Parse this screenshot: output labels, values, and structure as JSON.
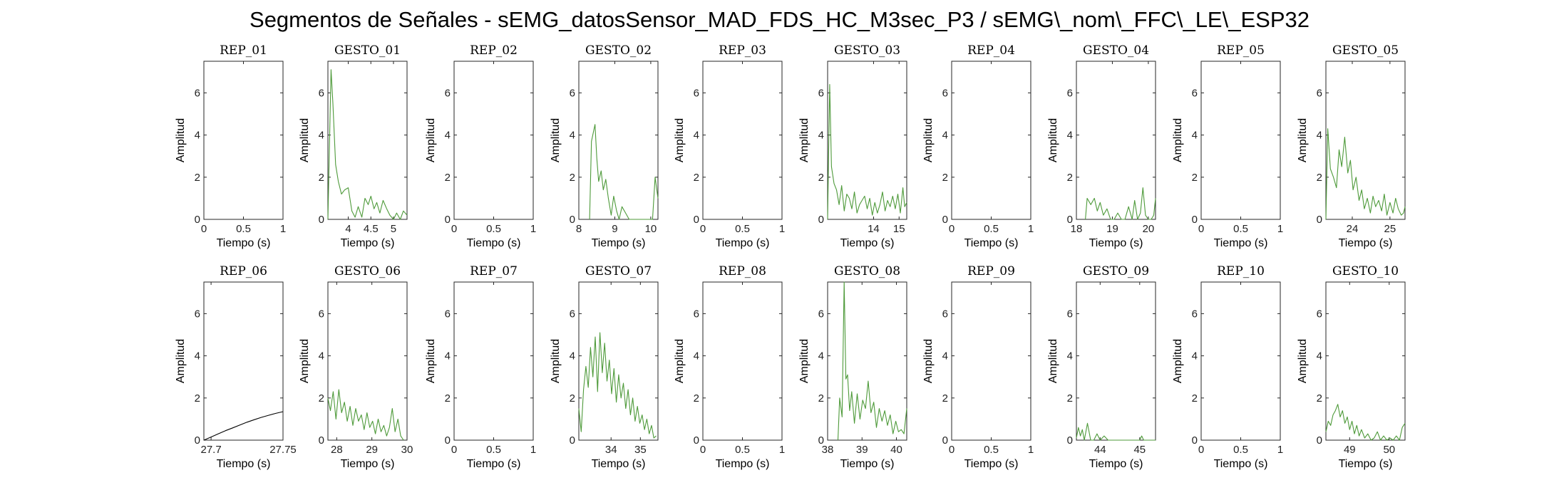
{
  "title": "Segmentos de Señales - sEMG_datosSensor_MAD_FDS_HC_M3sec_P3 / sEMG\\_nom\\_FFC\\_LE\\_ESP32",
  "colors": {
    "gesture": "#4e9a3a",
    "rest": "#000000",
    "axis": "#262626"
  },
  "chart_data": [
    {
      "type": "line",
      "title": "REP_01",
      "xlabel": "Tiempo (s)",
      "ylabel": "Amplitud",
      "xlim": [
        0,
        1
      ],
      "ylim": [
        0,
        7.5
      ],
      "xticks": [
        0,
        0.5,
        1
      ],
      "xtick_labels": [
        "0",
        "0.5",
        "1"
      ],
      "yticks": [
        0,
        2,
        4,
        6
      ],
      "ytick_labels": [
        "0",
        "2",
        "4",
        "6"
      ],
      "color": "#000000",
      "x": [],
      "y": []
    },
    {
      "type": "line",
      "title": "GESTO_01",
      "xlabel": "Tiempo (s)",
      "ylabel": "Amplitud",
      "xlim": [
        3.55,
        5.3
      ],
      "ylim": [
        0,
        7.5
      ],
      "xticks": [
        4,
        4.5,
        5
      ],
      "xtick_labels": [
        "4",
        "4.5",
        "5"
      ],
      "yticks": [
        0,
        2,
        4,
        6
      ],
      "ytick_labels": [
        "0",
        "2",
        "4",
        "6"
      ],
      "color": "#4e9a3a",
      "x": [
        3.55,
        3.62,
        3.66,
        3.72,
        3.78,
        3.85,
        3.92,
        4.0,
        4.08,
        4.15,
        4.22,
        4.3,
        4.37,
        4.44,
        4.5,
        4.57,
        4.63,
        4.7,
        4.77,
        4.85,
        4.92,
        5.0,
        5.07,
        5.15,
        5.22,
        5.3
      ],
      "y": [
        0,
        7.1,
        5.5,
        2.6,
        1.8,
        1.2,
        1.4,
        1.5,
        0.4,
        0.1,
        0.6,
        0.1,
        1.0,
        0.7,
        1.1,
        0.5,
        0.8,
        0.3,
        0.9,
        0.5,
        0.2,
        0.0,
        0.3,
        0.0,
        0.4,
        0.2
      ]
    },
    {
      "type": "line",
      "title": "REP_02",
      "xlabel": "Tiempo (s)",
      "ylabel": "Amplitud",
      "xlim": [
        0,
        1
      ],
      "ylim": [
        0,
        7.5
      ],
      "xticks": [
        0,
        0.5,
        1
      ],
      "xtick_labels": [
        "0",
        "0.5",
        "1"
      ],
      "yticks": [
        0,
        2,
        4,
        6
      ],
      "ytick_labels": [
        "0",
        "2",
        "4",
        "6"
      ],
      "color": "#000000",
      "x": [],
      "y": []
    },
    {
      "type": "line",
      "title": "GESTO_02",
      "xlabel": "Tiempo (s)",
      "ylabel": "Amplitud",
      "xlim": [
        8,
        10.2
      ],
      "ylim": [
        0,
        7.5
      ],
      "xticks": [
        8,
        9,
        10
      ],
      "xtick_labels": [
        "8",
        "9",
        "10"
      ],
      "yticks": [
        0,
        2,
        4,
        6
      ],
      "ytick_labels": [
        "0",
        "2",
        "4",
        "6"
      ],
      "color": "#4e9a3a",
      "x": [
        8.3,
        8.35,
        8.45,
        8.5,
        8.55,
        8.62,
        8.68,
        8.75,
        8.82,
        8.9,
        8.97,
        9.05,
        9.12,
        9.2,
        9.3,
        9.4,
        9.5,
        9.7,
        9.9,
        10.05,
        10.12,
        10.2
      ],
      "y": [
        0,
        3.7,
        4.5,
        2.9,
        1.8,
        2.3,
        1.4,
        1.9,
        1.0,
        0.2,
        1.1,
        0.4,
        0.0,
        0.6,
        0.3,
        0.0,
        0.0,
        0.0,
        0.0,
        0.0,
        2.0,
        1.0
      ]
    },
    {
      "type": "line",
      "title": "REP_03",
      "xlabel": "Tiempo (s)",
      "ylabel": "Amplitud",
      "xlim": [
        0,
        1
      ],
      "ylim": [
        0,
        7.5
      ],
      "xticks": [
        0,
        0.5,
        1
      ],
      "xtick_labels": [
        "0",
        "0.5",
        "1"
      ],
      "yticks": [
        0,
        2,
        4,
        6
      ],
      "ytick_labels": [
        "0",
        "2",
        "4",
        "6"
      ],
      "color": "#000000",
      "x": [],
      "y": []
    },
    {
      "type": "line",
      "title": "GESTO_03",
      "xlabel": "Tiempo (s)",
      "ylabel": "Amplitud",
      "xlim": [
        12.2,
        15.3
      ],
      "ylim": [
        0,
        7.5
      ],
      "xticks": [
        14,
        15
      ],
      "xtick_labels": [
        "14",
        "15"
      ],
      "yticks": [
        0,
        2,
        4,
        6
      ],
      "ytick_labels": [
        "0",
        "2",
        "4",
        "6"
      ],
      "color": "#4e9a3a",
      "x": [
        12.2,
        12.28,
        12.35,
        12.45,
        12.55,
        12.65,
        12.75,
        12.85,
        12.95,
        13.05,
        13.15,
        13.25,
        13.35,
        13.45,
        13.55,
        13.65,
        13.75,
        13.85,
        13.95,
        14.05,
        14.15,
        14.25,
        14.35,
        14.45,
        14.55,
        14.65,
        14.75,
        14.85,
        14.95,
        15.05,
        15.15,
        15.22,
        15.3
      ],
      "y": [
        0,
        6.4,
        2.5,
        1.7,
        1.4,
        0.7,
        1.6,
        0.4,
        1.2,
        1.0,
        0.5,
        1.3,
        0.3,
        0.7,
        0.9,
        1.1,
        0.5,
        1.0,
        0.2,
        0.8,
        0.3,
        0.7,
        1.3,
        0.4,
        0.9,
        0.6,
        1.1,
        0.5,
        1.2,
        0.3,
        1.5,
        0.6,
        0.8
      ]
    },
    {
      "type": "line",
      "title": "REP_04",
      "xlabel": "Tiempo (s)",
      "ylabel": "Amplitud",
      "xlim": [
        0,
        1
      ],
      "ylim": [
        0,
        7.5
      ],
      "xticks": [
        0,
        0.5,
        1
      ],
      "xtick_labels": [
        "0",
        "0.5",
        "1"
      ],
      "yticks": [
        0,
        2,
        4,
        6
      ],
      "ytick_labels": [
        "0",
        "2",
        "4",
        "6"
      ],
      "color": "#000000",
      "x": [],
      "y": []
    },
    {
      "type": "line",
      "title": "GESTO_04",
      "xlabel": "Tiempo (s)",
      "ylabel": "Amplitud",
      "xlim": [
        18,
        20.2
      ],
      "ylim": [
        0,
        7.5
      ],
      "xticks": [
        18,
        19,
        20
      ],
      "xtick_labels": [
        "18",
        "19",
        "20"
      ],
      "yticks": [
        0,
        2,
        4,
        6
      ],
      "ytick_labels": [
        "0",
        "2",
        "4",
        "6"
      ],
      "color": "#4e9a3a",
      "x": [
        18.25,
        18.3,
        18.4,
        18.5,
        18.58,
        18.66,
        18.75,
        18.85,
        18.95,
        19.05,
        19.15,
        19.25,
        19.35,
        19.45,
        19.55,
        19.62,
        19.7,
        19.78,
        19.85,
        19.92,
        20.0,
        20.08,
        20.15,
        20.2
      ],
      "y": [
        0,
        1.0,
        0.7,
        1.0,
        0.4,
        0.8,
        0.2,
        0.5,
        0.0,
        0.0,
        0.3,
        0.0,
        0.0,
        0.6,
        0.0,
        0.9,
        0.0,
        0.3,
        1.5,
        0.2,
        0.0,
        0.0,
        0.2,
        1.0
      ]
    },
    {
      "type": "line",
      "title": "REP_05",
      "xlabel": "Tiempo (s)",
      "ylabel": "Amplitud",
      "xlim": [
        0,
        1
      ],
      "ylim": [
        0,
        7.5
      ],
      "xticks": [
        0,
        0.5,
        1
      ],
      "xtick_labels": [
        "0",
        "0.5",
        "1"
      ],
      "yticks": [
        0,
        2,
        4,
        6
      ],
      "ytick_labels": [
        "0",
        "2",
        "4",
        "6"
      ],
      "color": "#000000",
      "x": [],
      "y": []
    },
    {
      "type": "line",
      "title": "GESTO_05",
      "xlabel": "Tiempo (s)",
      "ylabel": "Amplitud",
      "xlim": [
        23.3,
        25.4
      ],
      "ylim": [
        0,
        7.5
      ],
      "xticks": [
        24,
        25
      ],
      "xtick_labels": [
        "24",
        "25"
      ],
      "yticks": [
        0,
        2,
        4,
        6
      ],
      "ytick_labels": [
        "0",
        "2",
        "4",
        "6"
      ],
      "color": "#4e9a3a",
      "x": [
        23.3,
        23.35,
        23.42,
        23.5,
        23.58,
        23.65,
        23.72,
        23.8,
        23.88,
        23.95,
        24.02,
        24.1,
        24.18,
        24.25,
        24.32,
        24.4,
        24.48,
        24.55,
        24.62,
        24.7,
        24.78,
        24.85,
        24.92,
        25.0,
        25.08,
        25.15,
        25.22,
        25.3,
        25.36,
        25.4
      ],
      "y": [
        0,
        4.3,
        2.4,
        2.0,
        1.5,
        3.3,
        2.5,
        3.9,
        2.2,
        2.8,
        1.4,
        2.0,
        0.9,
        1.4,
        0.5,
        1.0,
        0.3,
        1.1,
        0.6,
        0.9,
        0.4,
        1.2,
        0.2,
        0.8,
        0.3,
        1.0,
        0.5,
        0.2,
        0.3,
        0.6
      ]
    },
    {
      "type": "line",
      "title": "REP_06",
      "xlabel": "Tiempo (s)",
      "ylabel": "Amplitud",
      "xlim": [
        27.695,
        27.75
      ],
      "ylim": [
        0,
        7.5
      ],
      "xticks": [
        27.7,
        27.75
      ],
      "xtick_labels": [
        "27.7",
        "27.75"
      ],
      "yticks": [
        0,
        2,
        4,
        6
      ],
      "ytick_labels": [
        "0",
        "2",
        "4",
        "6"
      ],
      "color": "#000000",
      "x": [
        27.695,
        27.7,
        27.705,
        27.71,
        27.715,
        27.72,
        27.725,
        27.73,
        27.735,
        27.74,
        27.745,
        27.75
      ],
      "y": [
        0,
        0.15,
        0.3,
        0.45,
        0.58,
        0.72,
        0.85,
        0.97,
        1.08,
        1.18,
        1.27,
        1.35
      ]
    },
    {
      "type": "line",
      "title": "GESTO_06",
      "xlabel": "Tiempo (s)",
      "ylabel": "Amplitud",
      "xlim": [
        27.75,
        30
      ],
      "ylim": [
        0,
        7.5
      ],
      "xticks": [
        28,
        29,
        30
      ],
      "xtick_labels": [
        "28",
        "29",
        "30"
      ],
      "yticks": [
        0,
        2,
        4,
        6
      ],
      "ytick_labels": [
        "0",
        "2",
        "4",
        "6"
      ],
      "color": "#4e9a3a",
      "x": [
        27.75,
        27.82,
        27.9,
        27.98,
        28.06,
        28.14,
        28.22,
        28.3,
        28.38,
        28.46,
        28.54,
        28.62,
        28.7,
        28.78,
        28.86,
        28.94,
        29.02,
        29.1,
        29.18,
        29.26,
        29.34,
        29.42,
        29.5,
        29.58,
        29.66,
        29.74,
        29.82,
        29.9
      ],
      "y": [
        2.0,
        1.4,
        2.3,
        1.0,
        2.4,
        1.3,
        1.8,
        0.9,
        1.6,
        0.7,
        1.5,
        0.9,
        1.2,
        0.5,
        1.3,
        0.6,
        0.9,
        0.3,
        1.0,
        0.4,
        0.7,
        0.2,
        0.6,
        1.5,
        0.4,
        1.0,
        0.2,
        0.0
      ]
    },
    {
      "type": "line",
      "title": "REP_07",
      "xlabel": "Tiempo (s)",
      "ylabel": "Amplitud",
      "xlim": [
        0,
        1
      ],
      "ylim": [
        0,
        7.5
      ],
      "xticks": [
        0,
        0.5,
        1
      ],
      "xtick_labels": [
        "0",
        "0.5",
        "1"
      ],
      "yticks": [
        0,
        2,
        4,
        6
      ],
      "ytick_labels": [
        "0",
        "2",
        "4",
        "6"
      ],
      "color": "#000000",
      "x": [],
      "y": []
    },
    {
      "type": "line",
      "title": "GESTO_07",
      "xlabel": "Tiempo (s)",
      "ylabel": "Amplitud",
      "xlim": [
        32.9,
        35.6
      ],
      "ylim": [
        0,
        7.5
      ],
      "xticks": [
        34,
        35
      ],
      "xtick_labels": [
        "34",
        "35"
      ],
      "yticks": [
        0,
        2,
        4,
        6
      ],
      "ytick_labels": [
        "0",
        "2",
        "4",
        "6"
      ],
      "color": "#4e9a3a",
      "x": [
        32.9,
        32.98,
        33.06,
        33.14,
        33.22,
        33.3,
        33.38,
        33.46,
        33.54,
        33.62,
        33.7,
        33.78,
        33.86,
        33.94,
        34.02,
        34.1,
        34.18,
        34.26,
        34.34,
        34.42,
        34.5,
        34.58,
        34.66,
        34.74,
        34.82,
        34.9,
        34.98,
        35.06,
        35.14,
        35.22,
        35.3,
        35.38,
        35.46,
        35.54
      ],
      "y": [
        1.5,
        0.4,
        2.4,
        3.5,
        2.5,
        4.4,
        3.0,
        4.9,
        2.3,
        5.1,
        3.2,
        4.6,
        2.8,
        3.8,
        2.2,
        3.4,
        1.8,
        3.1,
        2.0,
        2.7,
        1.5,
        2.4,
        1.2,
        2.0,
        0.9,
        1.6,
        0.8,
        1.2,
        0.5,
        1.0,
        0.3,
        0.7,
        0.1,
        0.2
      ]
    },
    {
      "type": "line",
      "title": "REP_08",
      "xlabel": "Tiempo (s)",
      "ylabel": "Amplitud",
      "xlim": [
        0,
        1
      ],
      "ylim": [
        0,
        7.5
      ],
      "xticks": [
        0,
        0.5,
        1
      ],
      "xtick_labels": [
        "0",
        "0.5",
        "1"
      ],
      "yticks": [
        0,
        2,
        4,
        6
      ],
      "ytick_labels": [
        "0",
        "2",
        "4",
        "6"
      ],
      "color": "#000000",
      "x": [],
      "y": []
    },
    {
      "type": "line",
      "title": "GESTO_08",
      "xlabel": "Tiempo (s)",
      "ylabel": "Amplitud",
      "xlim": [
        38,
        40.3
      ],
      "ylim": [
        0,
        7.5
      ],
      "xticks": [
        38,
        39,
        40
      ],
      "xtick_labels": [
        "38",
        "39",
        "40"
      ],
      "yticks": [
        0,
        2,
        4,
        6
      ],
      "ytick_labels": [
        "0",
        "2",
        "4",
        "6"
      ],
      "color": "#4e9a3a",
      "x": [
        38.3,
        38.35,
        38.42,
        38.48,
        38.53,
        38.58,
        38.64,
        38.7,
        38.78,
        38.86,
        38.94,
        39.02,
        39.1,
        39.18,
        39.26,
        39.34,
        39.42,
        39.5,
        39.58,
        39.66,
        39.74,
        39.82,
        39.9,
        39.98,
        40.06,
        40.14,
        40.22,
        40.3
      ],
      "y": [
        0,
        2.0,
        1.1,
        7.5,
        2.9,
        3.1,
        1.4,
        2.3,
        0.8,
        2.2,
        1.0,
        1.9,
        1.5,
        2.8,
        1.3,
        1.8,
        0.6,
        1.5,
        0.9,
        1.4,
        0.7,
        1.2,
        0.3,
        0.9,
        0.4,
        0.5,
        0.3,
        1.5
      ]
    },
    {
      "type": "line",
      "title": "REP_09",
      "xlabel": "Tiempo (s)",
      "ylabel": "Amplitud",
      "xlim": [
        0,
        1
      ],
      "ylim": [
        0,
        7.5
      ],
      "xticks": [
        0,
        0.5,
        1
      ],
      "xtick_labels": [
        "0",
        "0.5",
        "1"
      ],
      "yticks": [
        0,
        2,
        4,
        6
      ],
      "ytick_labels": [
        "0",
        "2",
        "4",
        "6"
      ],
      "color": "#000000",
      "x": [],
      "y": []
    },
    {
      "type": "line",
      "title": "GESTO_09",
      "xlabel": "Tiempo (s)",
      "ylabel": "Amplitud",
      "xlim": [
        43.4,
        45.4
      ],
      "ylim": [
        0,
        7.5
      ],
      "xticks": [
        44,
        45
      ],
      "xtick_labels": [
        "44",
        "45"
      ],
      "yticks": [
        0,
        2,
        4,
        6
      ],
      "ytick_labels": [
        "0",
        "2",
        "4",
        "6"
      ],
      "color": "#4e9a3a",
      "x": [
        43.4,
        43.45,
        43.5,
        43.55,
        43.6,
        43.68,
        43.76,
        43.84,
        43.92,
        44.0,
        44.1,
        44.2,
        44.3,
        44.45,
        44.6,
        44.75,
        44.9,
        45.0,
        45.05,
        45.1,
        45.2,
        45.3,
        45.4
      ],
      "y": [
        0.1,
        0.6,
        0.2,
        0.5,
        0.0,
        0.8,
        0.0,
        0.0,
        0.3,
        0.0,
        0.2,
        0.0,
        0.0,
        0.0,
        0.0,
        0.0,
        0.0,
        0.0,
        0.2,
        0.0,
        0.0,
        0.0,
        0.0
      ]
    },
    {
      "type": "line",
      "title": "REP_10",
      "xlabel": "Tiempo (s)",
      "ylabel": "Amplitud",
      "xlim": [
        0,
        1
      ],
      "ylim": [
        0,
        7.5
      ],
      "xticks": [
        0,
        0.5,
        1
      ],
      "xtick_labels": [
        "0",
        "0.5",
        "1"
      ],
      "yticks": [
        0,
        2,
        4,
        6
      ],
      "ytick_labels": [
        "0",
        "2",
        "4",
        "6"
      ],
      "color": "#000000",
      "x": [],
      "y": []
    },
    {
      "type": "line",
      "title": "GESTO_10",
      "xlabel": "Tiempo (s)",
      "ylabel": "Amplitud",
      "xlim": [
        48.4,
        50.4
      ],
      "ylim": [
        0,
        7.5
      ],
      "xticks": [
        49,
        50
      ],
      "xtick_labels": [
        "49",
        "50"
      ],
      "yticks": [
        0,
        2,
        4,
        6
      ],
      "ytick_labels": [
        "0",
        "2",
        "4",
        "6"
      ],
      "color": "#4e9a3a",
      "x": [
        48.4,
        48.46,
        48.52,
        48.58,
        48.64,
        48.7,
        48.76,
        48.82,
        48.88,
        48.94,
        49.0,
        49.06,
        49.12,
        49.18,
        49.24,
        49.3,
        49.38,
        49.46,
        49.54,
        49.62,
        49.7,
        49.78,
        49.86,
        49.94,
        50.02,
        50.1,
        50.18,
        50.26,
        50.33,
        50.4
      ],
      "y": [
        0.4,
        0.9,
        0.7,
        1.2,
        1.4,
        1.7,
        1.1,
        1.4,
        0.8,
        1.1,
        0.5,
        0.9,
        0.3,
        0.7,
        0.2,
        0.5,
        0.1,
        0.3,
        0.0,
        0.1,
        0.4,
        0.0,
        0.2,
        0.0,
        0.1,
        0.0,
        0.2,
        0.0,
        0.6,
        0.8
      ]
    }
  ]
}
